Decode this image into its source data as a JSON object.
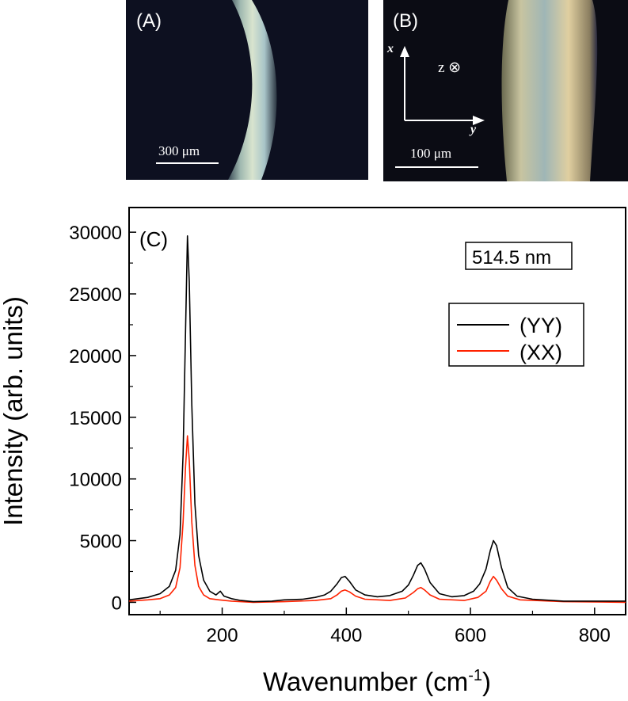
{
  "panel_a": {
    "label": "(A)",
    "scalebar_label": "300 μm"
  },
  "panel_b": {
    "label": "(B)",
    "axis_x_label": "x",
    "axis_y_label": "y",
    "axis_z_label": "z ⊗",
    "scalebar_label": "100 μm"
  },
  "panel_c": {
    "label": "(C)",
    "annotation": "514.5 nm"
  },
  "colors": {
    "yy": "#000000",
    "xx": "#ff2200",
    "micrograph_bg": "#0d1020"
  },
  "chart_data": {
    "type": "line",
    "xlabel_main": "Wavenumber (cm",
    "xlabel_sup": "-1",
    "xlabel_close": ")",
    "ylabel": "Intensity (arb. units)",
    "xlim": [
      50,
      850
    ],
    "ylim": [
      -1000,
      32000
    ],
    "x_ticks": [
      200,
      400,
      600,
      800
    ],
    "y_ticks": [
      0,
      5000,
      10000,
      15000,
      20000,
      25000,
      30000
    ],
    "x_tick_labels": [
      "200",
      "400",
      "600",
      "800"
    ],
    "y_tick_labels": [
      "0",
      "5000",
      "10000",
      "15000",
      "20000",
      "25000",
      "30000"
    ],
    "legend_position": "upper-right",
    "grid": false,
    "series": [
      {
        "name": "(YY)",
        "color": "#000000",
        "x": [
          50,
          80,
          100,
          115,
          125,
          132,
          137,
          141,
          144,
          147,
          151,
          156,
          162,
          170,
          180,
          190,
          197,
          203,
          215,
          230,
          250,
          280,
          300,
          330,
          350,
          365,
          375,
          385,
          392,
          398,
          405,
          415,
          430,
          450,
          470,
          490,
          500,
          508,
          515,
          520,
          526,
          535,
          550,
          570,
          590,
          605,
          615,
          625,
          632,
          637,
          642,
          650,
          660,
          675,
          700,
          750,
          800,
          850
        ],
        "y": [
          200,
          400,
          700,
          1300,
          2600,
          5500,
          12000,
          22000,
          29700,
          26000,
          16000,
          8000,
          3800,
          1800,
          900,
          600,
          900,
          500,
          300,
          150,
          50,
          100,
          200,
          250,
          400,
          600,
          900,
          1500,
          2000,
          2100,
          1700,
          1000,
          600,
          450,
          550,
          900,
          1400,
          2200,
          3000,
          3200,
          2700,
          1600,
          700,
          450,
          550,
          900,
          1500,
          2700,
          4200,
          5000,
          4600,
          2800,
          1200,
          500,
          250,
          100,
          100,
          100
        ]
      },
      {
        "name": "(XX)",
        "color": "#ff2200",
        "x": [
          50,
          80,
          100,
          115,
          125,
          132,
          137,
          141,
          144,
          147,
          151,
          156,
          162,
          170,
          180,
          195,
          215,
          250,
          300,
          350,
          375,
          385,
          392,
          398,
          405,
          415,
          430,
          470,
          495,
          508,
          515,
          520,
          526,
          535,
          550,
          590,
          612,
          625,
          632,
          637,
          642,
          650,
          660,
          680,
          750,
          850
        ],
        "y": [
          100,
          200,
          300,
          600,
          1200,
          2800,
          6500,
          11000,
          13500,
          11500,
          6500,
          3000,
          1300,
          600,
          300,
          200,
          100,
          0,
          50,
          150,
          300,
          600,
          900,
          1000,
          850,
          500,
          250,
          150,
          350,
          800,
          1100,
          1200,
          1000,
          600,
          250,
          150,
          400,
          900,
          1700,
          2100,
          1800,
          1100,
          500,
          200,
          50,
          0
        ]
      }
    ]
  }
}
